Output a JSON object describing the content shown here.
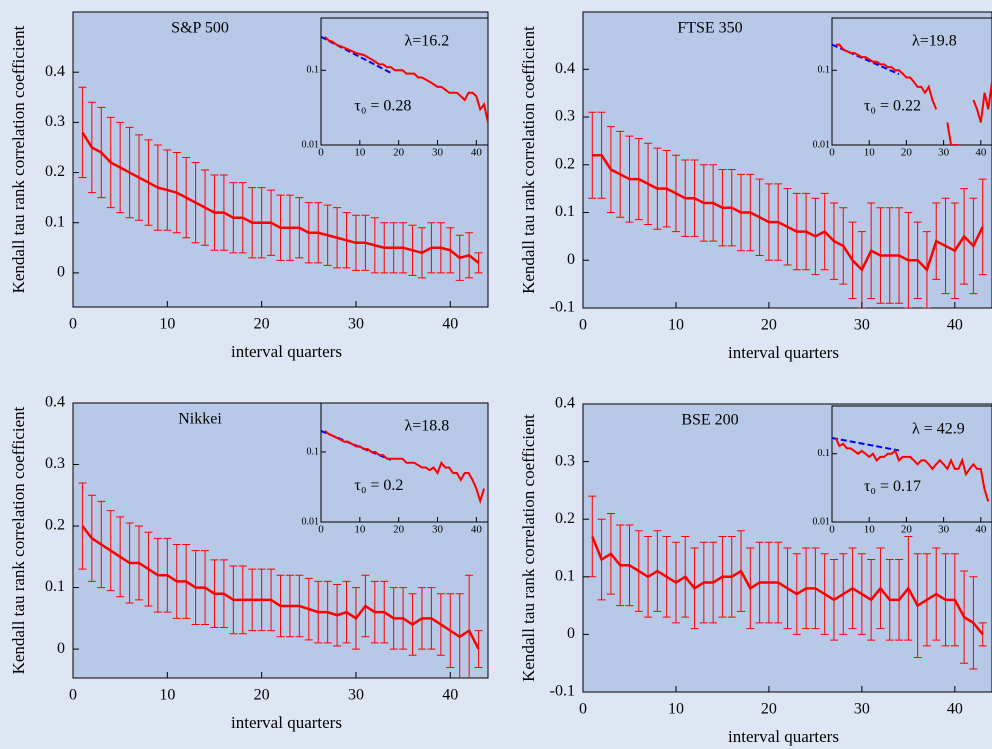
{
  "chart_data": [
    {
      "type": "line",
      "title": "S&P 500",
      "x_label": "interval quarters",
      "y_label": "Kendall tau rank correlation coefficient",
      "color": "#ff0000",
      "x": [
        1,
        2,
        3,
        4,
        5,
        6,
        7,
        8,
        9,
        10,
        11,
        12,
        13,
        14,
        15,
        16,
        17,
        18,
        19,
        20,
        21,
        22,
        23,
        24,
        25,
        26,
        27,
        28,
        29,
        30,
        31,
        32,
        33,
        34,
        35,
        36,
        37,
        38,
        39,
        40,
        41,
        42,
        43
      ],
      "values": [
        0.28,
        0.25,
        0.24,
        0.22,
        0.21,
        0.2,
        0.19,
        0.18,
        0.17,
        0.165,
        0.16,
        0.15,
        0.14,
        0.13,
        0.12,
        0.12,
        0.11,
        0.11,
        0.1,
        0.1,
        0.1,
        0.09,
        0.09,
        0.09,
        0.08,
        0.08,
        0.075,
        0.07,
        0.065,
        0.06,
        0.06,
        0.055,
        0.05,
        0.05,
        0.05,
        0.045,
        0.04,
        0.05,
        0.05,
        0.045,
        0.03,
        0.035,
        0.02
      ],
      "errors": [
        0.09,
        0.09,
        0.09,
        0.09,
        0.09,
        0.09,
        0.085,
        0.085,
        0.085,
        0.08,
        0.08,
        0.08,
        0.08,
        0.075,
        0.075,
        0.075,
        0.07,
        0.07,
        0.07,
        0.07,
        0.065,
        0.065,
        0.065,
        0.06,
        0.06,
        0.06,
        0.06,
        0.06,
        0.055,
        0.055,
        0.055,
        0.055,
        0.05,
        0.05,
        0.05,
        0.05,
        0.05,
        0.05,
        0.05,
        0.045,
        0.045,
        0.045,
        0.02
      ],
      "xlim": [
        0,
        44
      ],
      "ylim": [
        -0.068,
        0.52
      ],
      "xticks": [
        0,
        10,
        20,
        30,
        40
      ],
      "yticks": [
        0,
        0.1,
        0.2,
        0.3,
        0.4
      ],
      "inset": {
        "lambda_label": "λ=16.2",
        "tau_label": "τ₀ = 0.28",
        "lambda": 16.2,
        "tau0": 0.28,
        "yscale": "log",
        "xlim": [
          0,
          43
        ],
        "ylim": [
          0.01,
          0.5
        ],
        "xticks": [
          0,
          10,
          20,
          30,
          40
        ],
        "yticks": [
          0.01,
          0.1
        ],
        "fit_color": "#0000ff"
      }
    },
    {
      "type": "line",
      "title": "FTSE 350",
      "x_label": "interval quarters",
      "y_label": "Kendall tau rank correlation coefficient",
      "color": "#ff0000",
      "x": [
        1,
        2,
        3,
        4,
        5,
        6,
        7,
        8,
        9,
        10,
        11,
        12,
        13,
        14,
        15,
        16,
        17,
        18,
        19,
        20,
        21,
        22,
        23,
        24,
        25,
        26,
        27,
        28,
        29,
        30,
        31,
        32,
        33,
        34,
        35,
        36,
        37,
        38,
        39,
        40,
        41,
        42,
        43
      ],
      "values": [
        0.22,
        0.22,
        0.19,
        0.18,
        0.17,
        0.17,
        0.16,
        0.15,
        0.15,
        0.14,
        0.13,
        0.13,
        0.12,
        0.12,
        0.11,
        0.11,
        0.1,
        0.1,
        0.09,
        0.08,
        0.08,
        0.07,
        0.06,
        0.06,
        0.05,
        0.06,
        0.04,
        0.03,
        0.0,
        -0.02,
        0.02,
        0.01,
        0.01,
        0.01,
        0.0,
        0.0,
        -0.02,
        0.04,
        0.03,
        0.02,
        0.05,
        0.03,
        0.07
      ],
      "errors": [
        0.09,
        0.09,
        0.09,
        0.09,
        0.09,
        0.085,
        0.085,
        0.085,
        0.08,
        0.08,
        0.08,
        0.08,
        0.08,
        0.08,
        0.08,
        0.08,
        0.08,
        0.08,
        0.08,
        0.08,
        0.08,
        0.08,
        0.08,
        0.08,
        0.08,
        0.08,
        0.08,
        0.08,
        0.08,
        0.08,
        0.1,
        0.1,
        0.1,
        0.1,
        0.1,
        0.08,
        0.08,
        0.08,
        0.1,
        0.1,
        0.1,
        0.1,
        0.1
      ],
      "xlim": [
        0,
        44
      ],
      "ylim": [
        -0.1,
        0.52
      ],
      "xticks": [
        0,
        10,
        20,
        30,
        40
      ],
      "yticks": [
        -0.1,
        0,
        0.1,
        0.2,
        0.3,
        0.4
      ],
      "inset": {
        "lambda_label": "λ=19.8",
        "tau_label": "τ₀ = 0.22",
        "lambda": 19.8,
        "tau0": 0.22,
        "yscale": "log",
        "xlim": [
          0,
          43
        ],
        "ylim": [
          0.01,
          0.5
        ],
        "xticks": [
          0,
          10,
          20,
          30,
          40
        ],
        "yticks": [
          0.01,
          0.1
        ],
        "fit_color": "#0000ff"
      }
    },
    {
      "type": "line",
      "title": "Nikkei",
      "x_label": "interval quarters",
      "y_label": "Kendall tau rank correlation coefficient",
      "color": "#ff0000",
      "x": [
        1,
        2,
        3,
        4,
        5,
        6,
        7,
        8,
        9,
        10,
        11,
        12,
        13,
        14,
        15,
        16,
        17,
        18,
        19,
        20,
        21,
        22,
        23,
        24,
        25,
        26,
        27,
        28,
        29,
        30,
        31,
        32,
        33,
        34,
        35,
        36,
        37,
        38,
        39,
        40,
        41,
        42,
        43
      ],
      "values": [
        0.2,
        0.18,
        0.17,
        0.16,
        0.15,
        0.14,
        0.14,
        0.13,
        0.12,
        0.12,
        0.11,
        0.11,
        0.1,
        0.1,
        0.09,
        0.09,
        0.08,
        0.08,
        0.08,
        0.08,
        0.08,
        0.07,
        0.07,
        0.07,
        0.065,
        0.06,
        0.06,
        0.055,
        0.06,
        0.05,
        0.07,
        0.06,
        0.06,
        0.05,
        0.05,
        0.04,
        0.05,
        0.05,
        0.04,
        0.03,
        0.02,
        0.03,
        0.0
      ],
      "errors": [
        0.07,
        0.07,
        0.07,
        0.065,
        0.065,
        0.065,
        0.06,
        0.06,
        0.06,
        0.06,
        0.06,
        0.06,
        0.06,
        0.06,
        0.055,
        0.055,
        0.055,
        0.055,
        0.05,
        0.05,
        0.05,
        0.05,
        0.05,
        0.05,
        0.05,
        0.05,
        0.05,
        0.05,
        0.05,
        0.05,
        0.05,
        0.05,
        0.05,
        0.05,
        0.05,
        0.05,
        0.05,
        0.05,
        0.05,
        0.06,
        0.07,
        0.09,
        0.03
      ],
      "xlim": [
        0,
        44
      ],
      "ylim": [
        -0.047,
        0.4
      ],
      "xticks": [
        0,
        10,
        20,
        30,
        40
      ],
      "yticks": [
        0,
        0.1,
        0.2,
        0.3,
        0.4
      ],
      "inset": {
        "lambda_label": "λ=18.8",
        "tau_label": "τ₀ = 0.2",
        "lambda": 18.8,
        "tau0": 0.2,
        "yscale": "log",
        "xlim": [
          0,
          43
        ],
        "ylim": [
          0.01,
          0.5
        ],
        "xticks": [
          0,
          10,
          20,
          30,
          40
        ],
        "yticks": [
          0.01,
          0.1
        ],
        "fit_color": "#0000ff"
      }
    },
    {
      "type": "line",
      "title": "BSE 200",
      "x_label": "interval quarters",
      "y_label": "Kendall tau rank correlation coefficient",
      "color": "#ff0000",
      "x": [
        1,
        2,
        3,
        4,
        5,
        6,
        7,
        8,
        9,
        10,
        11,
        12,
        13,
        14,
        15,
        16,
        17,
        18,
        19,
        20,
        21,
        22,
        23,
        24,
        25,
        26,
        27,
        28,
        29,
        30,
        31,
        32,
        33,
        34,
        35,
        36,
        37,
        38,
        39,
        40,
        41,
        42,
        43
      ],
      "values": [
        0.17,
        0.13,
        0.14,
        0.12,
        0.12,
        0.11,
        0.1,
        0.11,
        0.1,
        0.09,
        0.1,
        0.08,
        0.09,
        0.09,
        0.1,
        0.1,
        0.11,
        0.08,
        0.09,
        0.09,
        0.09,
        0.08,
        0.07,
        0.08,
        0.08,
        0.07,
        0.06,
        0.07,
        0.08,
        0.07,
        0.06,
        0.08,
        0.06,
        0.06,
        0.08,
        0.05,
        0.06,
        0.07,
        0.06,
        0.06,
        0.03,
        0.02,
        0.0
      ],
      "errors": [
        0.07,
        0.07,
        0.07,
        0.07,
        0.07,
        0.07,
        0.07,
        0.07,
        0.07,
        0.07,
        0.07,
        0.07,
        0.07,
        0.07,
        0.07,
        0.07,
        0.07,
        0.07,
        0.07,
        0.07,
        0.07,
        0.07,
        0.07,
        0.07,
        0.07,
        0.07,
        0.07,
        0.07,
        0.07,
        0.07,
        0.07,
        0.07,
        0.07,
        0.07,
        0.09,
        0.09,
        0.08,
        0.08,
        0.08,
        0.08,
        0.08,
        0.08,
        0.02
      ],
      "xlim": [
        0,
        44
      ],
      "ylim": [
        -0.1,
        0.4
      ],
      "xticks": [
        0,
        10,
        20,
        30,
        40
      ],
      "yticks": [
        -0.1,
        0,
        0.1,
        0.2,
        0.3,
        0.4
      ],
      "inset": {
        "lambda_label": "λ = 42.9",
        "tau_label": "τ₀ = 0.17",
        "lambda": 42.9,
        "tau0": 0.17,
        "yscale": "log",
        "xlim": [
          0,
          43
        ],
        "ylim": [
          0.01,
          0.5
        ],
        "xticks": [
          0,
          10,
          20,
          30,
          40
        ],
        "yticks": [
          0.01,
          0.1
        ],
        "fit_color": "#0000ff"
      }
    }
  ]
}
